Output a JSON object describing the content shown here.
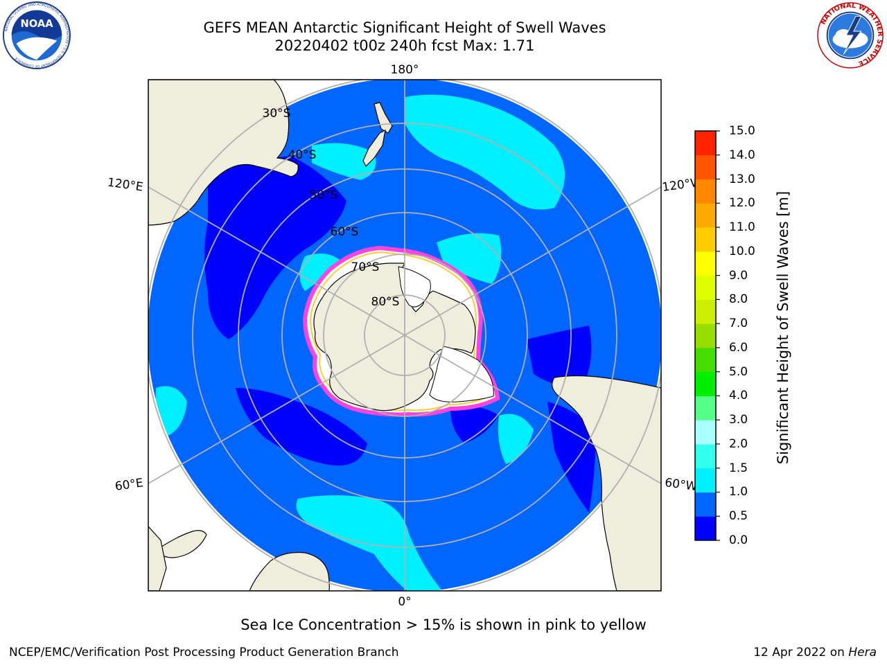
{
  "title": {
    "line1": "GEFS MEAN Antarctic Significant Height of Swell Waves",
    "line2": "20220402 t00z 240h fcst   Max: 1.71"
  },
  "logos": {
    "noaa": {
      "text": "NOAA",
      "ring_text": "NATIONAL OCEANIC AND ATMOSPHERIC ADMINISTRATION • U.S. DEPARTMENT OF COMMERCE"
    },
    "nws": {
      "ring_text": "NATIONAL WEATHER SERVICE"
    }
  },
  "map": {
    "projection": "South Polar Stereographic",
    "longitude_labels": [
      "180°",
      "120°E",
      "120°W",
      "60°E",
      "60°W",
      "0°"
    ],
    "latitude_labels": [
      "30°S",
      "40°S",
      "50°S",
      "60°S",
      "70°S",
      "80°S"
    ],
    "colors": {
      "land": "#efeedc",
      "ocean_base": "#0066ff",
      "grid": "#b0b0b0",
      "ice_pink": "#ff44dd",
      "ice_yellow": "#ffcc33"
    }
  },
  "colorbar": {
    "label": "Significant Height of Swell Waves [m]",
    "ticks": [
      "0.0",
      "0.5",
      "1.0",
      "1.5",
      "2.0",
      "3.0",
      "4.0",
      "5.0",
      "6.0",
      "7.0",
      "8.0",
      "9.0",
      "10.0",
      "11.0",
      "12.0",
      "13.0",
      "14.0",
      "15.0"
    ],
    "colors": [
      "#0000ff",
      "#0066ff",
      "#00f0ff",
      "#33ffee",
      "#aaffff",
      "#55ff88",
      "#00ee00",
      "#44dd00",
      "#99dd00",
      "#ccee00",
      "#ddff00",
      "#ffff00",
      "#ffcc00",
      "#ffaa00",
      "#ff8800",
      "#ff5500",
      "#ff2200"
    ]
  },
  "footer": {
    "note": "Sea Ice Concentration > 15% is shown in pink to yellow",
    "left": "NCEP/EMC/Verification Post Processing Product Generation Branch",
    "right_date": "12 Apr 2022 on",
    "right_machine": "Hera"
  }
}
